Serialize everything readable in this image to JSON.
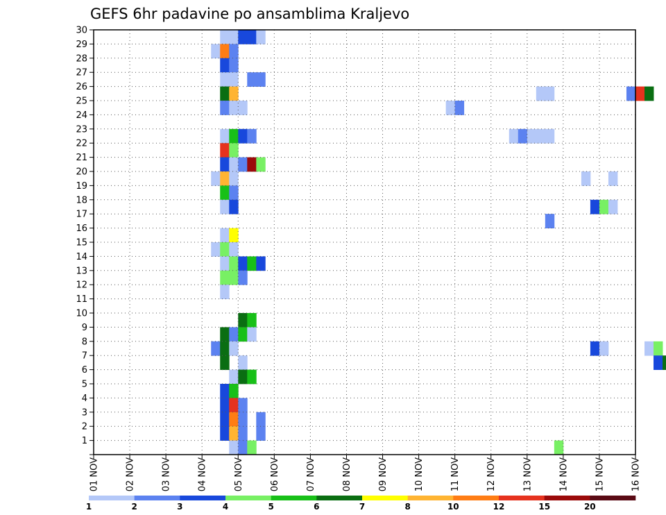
{
  "chart_data": {
    "type": "heatmap",
    "title": "GEFS 6hr padavine po ansamblima Kraljevo",
    "x_tick_labels": [
      "01 NOV",
      "02 NOV",
      "03 NOV",
      "04 NOV",
      "05 NOV",
      "06 NOV",
      "07 NOV",
      "08 NOV",
      "09 NOV",
      "10 NOV",
      "11 NOV",
      "12 NOV",
      "13 NOV",
      "14 NOV",
      "15 NOV",
      "16 NOV"
    ],
    "y_tick_labels": [
      "1",
      "2",
      "3",
      "4",
      "5",
      "6",
      "7",
      "8",
      "9",
      "10",
      "11",
      "12",
      "13",
      "14",
      "15",
      "16",
      "17",
      "18",
      "19",
      "20",
      "21",
      "22",
      "23",
      "24",
      "25",
      "26",
      "27",
      "28",
      "29",
      "30"
    ],
    "x_range_days": [
      0,
      15
    ],
    "y_range_members": [
      0,
      30
    ],
    "step_days": 0.25,
    "legend": {
      "ticks": [
        "1",
        "2",
        "3",
        "4",
        "5",
        "6",
        "7",
        "8",
        "10",
        "12",
        "15",
        "20"
      ],
      "colors": [
        "#b4c8f8",
        "#5c82f0",
        "#1848dc",
        "#78f064",
        "#18c018",
        "#0a6e12",
        "#ffff00",
        "#ffb432",
        "#ff7d14",
        "#e6321e",
        "#9b0a0a",
        "#5a0a14"
      ]
    },
    "cells": [
      [
        3.5,
        29,
        0
      ],
      [
        3.75,
        29,
        0
      ],
      [
        4.0,
        29,
        2
      ],
      [
        4.25,
        29,
        2
      ],
      [
        4.5,
        29,
        0
      ],
      [
        3.25,
        28,
        0
      ],
      [
        3.5,
        28,
        8
      ],
      [
        3.75,
        28,
        1
      ],
      [
        3.5,
        27,
        2
      ],
      [
        3.75,
        27,
        1
      ],
      [
        3.5,
        26,
        0
      ],
      [
        3.75,
        26,
        0
      ],
      [
        4.25,
        26,
        1
      ],
      [
        4.5,
        26,
        1
      ],
      [
        3.5,
        25,
        5
      ],
      [
        3.75,
        25,
        7
      ],
      [
        12.25,
        25,
        0
      ],
      [
        12.5,
        25,
        0
      ],
      [
        14.75,
        25,
        1
      ],
      [
        15.0,
        25,
        9
      ],
      [
        15.25,
        25,
        5
      ],
      [
        3.5,
        24,
        1
      ],
      [
        3.75,
        24,
        0
      ],
      [
        4.0,
        24,
        0
      ],
      [
        9.75,
        24,
        0
      ],
      [
        10.0,
        24,
        1
      ],
      [
        3.5,
        22,
        0
      ],
      [
        3.75,
        22,
        4
      ],
      [
        4.0,
        22,
        2
      ],
      [
        4.25,
        22,
        1
      ],
      [
        11.5,
        22,
        0
      ],
      [
        11.75,
        22,
        1
      ],
      [
        12.0,
        22,
        0
      ],
      [
        12.25,
        22,
        0
      ],
      [
        12.5,
        22,
        0
      ],
      [
        3.5,
        21,
        9
      ],
      [
        3.75,
        21,
        3
      ],
      [
        3.5,
        20,
        2
      ],
      [
        3.75,
        20,
        0
      ],
      [
        4.0,
        20,
        1
      ],
      [
        4.25,
        20,
        10
      ],
      [
        4.5,
        20,
        3
      ],
      [
        3.25,
        19,
        0
      ],
      [
        3.5,
        19,
        7
      ],
      [
        3.75,
        19,
        0
      ],
      [
        13.5,
        19,
        0
      ],
      [
        14.25,
        19,
        0
      ],
      [
        3.5,
        18,
        4
      ],
      [
        3.75,
        18,
        1
      ],
      [
        3.5,
        17,
        0
      ],
      [
        3.75,
        17,
        2
      ],
      [
        13.75,
        17,
        2
      ],
      [
        14.0,
        17,
        3
      ],
      [
        14.25,
        17,
        0
      ],
      [
        12.5,
        16,
        1
      ],
      [
        3.5,
        15,
        0
      ],
      [
        3.75,
        15,
        6
      ],
      [
        3.25,
        14,
        0
      ],
      [
        3.5,
        14,
        3
      ],
      [
        3.75,
        14,
        0
      ],
      [
        3.5,
        13,
        0
      ],
      [
        3.75,
        13,
        3
      ],
      [
        4.0,
        13,
        2
      ],
      [
        4.25,
        13,
        4
      ],
      [
        4.5,
        13,
        2
      ],
      [
        3.5,
        12,
        3
      ],
      [
        3.75,
        12,
        3
      ],
      [
        4.0,
        12,
        1
      ],
      [
        3.5,
        11,
        0
      ],
      [
        4.0,
        9,
        5
      ],
      [
        4.25,
        9,
        4
      ],
      [
        3.5,
        8,
        5
      ],
      [
        3.75,
        8,
        1
      ],
      [
        4.0,
        8,
        4
      ],
      [
        4.25,
        8,
        0
      ],
      [
        3.25,
        7,
        1
      ],
      [
        3.5,
        7,
        5
      ],
      [
        3.75,
        7,
        0
      ],
      [
        13.75,
        7,
        2
      ],
      [
        14.0,
        7,
        0
      ],
      [
        15.25,
        7,
        0
      ],
      [
        15.5,
        7,
        3
      ],
      [
        3.5,
        6,
        5
      ],
      [
        4.0,
        6,
        0
      ],
      [
        15.5,
        6,
        2
      ],
      [
        15.75,
        6,
        5
      ],
      [
        3.75,
        5,
        0
      ],
      [
        4.0,
        5,
        5
      ],
      [
        4.25,
        5,
        4
      ],
      [
        3.5,
        4,
        2
      ],
      [
        3.75,
        4,
        4
      ],
      [
        3.5,
        3,
        2
      ],
      [
        3.75,
        3,
        9
      ],
      [
        4.0,
        3,
        1
      ],
      [
        3.5,
        2,
        2
      ],
      [
        3.75,
        2,
        8
      ],
      [
        4.0,
        2,
        1
      ],
      [
        4.5,
        2,
        1
      ],
      [
        3.5,
        1,
        2
      ],
      [
        3.75,
        1,
        7
      ],
      [
        4.0,
        1,
        1
      ],
      [
        4.5,
        1,
        1
      ],
      [
        3.75,
        0,
        0
      ],
      [
        4.0,
        0,
        1
      ],
      [
        4.25,
        0,
        3
      ],
      [
        12.75,
        0,
        3
      ]
    ]
  }
}
